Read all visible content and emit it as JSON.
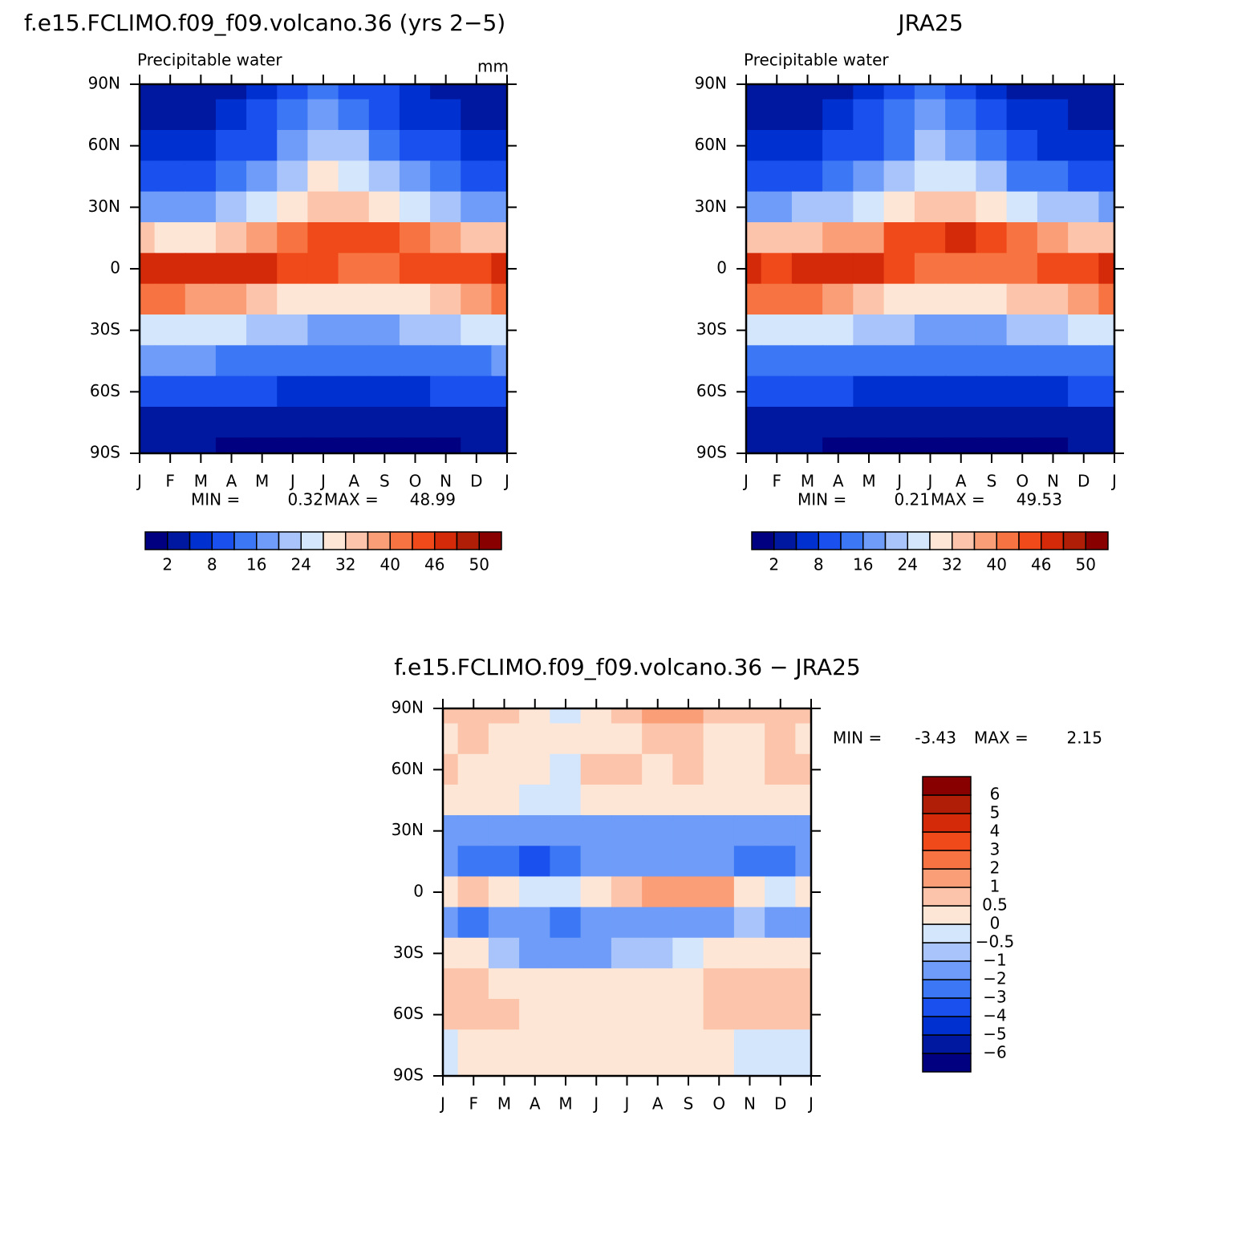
{
  "chart_data": [
    {
      "type": "contour",
      "title": "f.e15.FCLIMO.f09_f09.volcano.36 (yrs 2−5)",
      "subtitle": "Precipitable water",
      "units": "mm",
      "categories": [
        "J",
        "F",
        "M",
        "A",
        "M",
        "J",
        "J",
        "A",
        "S",
        "O",
        "N",
        "D",
        "J"
      ],
      "lats": [
        90,
        75,
        60,
        45,
        30,
        15,
        0,
        -15,
        -30,
        -45,
        -60,
        -75,
        -90
      ],
      "ylim": [
        -90,
        90
      ],
      "yticks": [
        {
          "value": 90,
          "label": "90N"
        },
        {
          "value": 60,
          "label": "60N"
        },
        {
          "value": 30,
          "label": "30N"
        },
        0,
        {
          "value": -30,
          "label": "30S"
        },
        {
          "value": -60,
          "label": "60S"
        },
        {
          "value": -90,
          "label": "90S"
        }
      ],
      "values": [
        [
          3,
          3,
          3,
          4,
          6,
          9,
          12,
          11,
          8,
          5,
          4,
          3,
          3
        ],
        [
          4,
          4,
          4,
          5,
          8,
          12,
          16,
          15,
          11,
          7,
          5,
          4,
          4
        ],
        [
          6,
          6,
          7,
          8,
          11,
          16,
          21,
          20,
          15,
          10,
          8,
          6,
          6
        ],
        [
          10,
          10,
          11,
          13,
          17,
          22,
          28,
          27,
          22,
          16,
          12,
          10,
          10
        ],
        [
          18,
          18,
          19,
          21,
          25,
          30,
          34,
          34,
          30,
          25,
          21,
          19,
          18
        ],
        [
          32,
          31,
          31,
          33,
          37,
          41,
          44,
          45,
          43,
          40,
          36,
          33,
          32
        ],
        [
          46,
          46,
          47,
          47,
          46,
          44,
          43,
          42,
          42,
          43,
          44,
          45,
          46
        ],
        [
          40,
          40,
          39,
          37,
          33,
          30,
          28,
          28,
          29,
          31,
          34,
          37,
          40
        ],
        [
          27,
          27,
          26,
          24,
          22,
          20,
          18,
          18,
          19,
          21,
          23,
          25,
          27
        ],
        [
          16,
          16,
          16,
          15,
          14,
          13,
          12,
          12,
          12,
          13,
          14,
          15,
          16
        ],
        [
          9,
          9,
          9,
          8,
          8,
          7,
          7,
          7,
          7,
          7,
          8,
          8,
          9
        ],
        [
          4,
          4,
          4,
          3,
          3,
          3,
          3,
          3,
          3,
          3,
          3,
          3,
          4
        ],
        [
          2,
          2,
          2,
          1,
          1,
          1,
          1,
          1,
          1,
          1,
          1,
          2,
          2
        ]
      ],
      "levels": [
        2,
        5,
        8,
        12,
        16,
        20,
        24,
        28,
        32,
        36,
        40,
        43,
        46,
        48,
        50
      ],
      "colorbar_ticks": [
        2,
        8,
        16,
        24,
        32,
        40,
        46,
        50
      ],
      "colors": [
        "#000080",
        "#0018a0",
        "#0030d0",
        "#1a50ee",
        "#3c78f5",
        "#6e9cf8",
        "#a8c4fa",
        "#d4e6fc",
        "#fde6d6",
        "#fcc4aa",
        "#fa9e78",
        "#f77442",
        "#f04a1a",
        "#d42a0a",
        "#b01e08",
        "#880000"
      ],
      "min_label": "MIN =",
      "min": 0.32,
      "max_label": "MAX =",
      "max": 48.99
    },
    {
      "type": "contour",
      "title": "JRA25",
      "subtitle": "Precipitable water",
      "categories": [
        "J",
        "F",
        "M",
        "A",
        "M",
        "J",
        "J",
        "A",
        "S",
        "O",
        "N",
        "D",
        "J"
      ],
      "lats": [
        90,
        75,
        60,
        45,
        30,
        15,
        0,
        -15,
        -30,
        -45,
        -60,
        -75,
        -90
      ],
      "ylim": [
        -90,
        90
      ],
      "yticks": [
        {
          "value": 90,
          "label": "90N"
        },
        {
          "value": 60,
          "label": "60N"
        },
        {
          "value": 30,
          "label": "30N"
        },
        0,
        {
          "value": -30,
          "label": "30S"
        },
        {
          "value": -60,
          "label": "60S"
        },
        {
          "value": -90,
          "label": "90S"
        }
      ],
      "values": [
        [
          2,
          2,
          3,
          4,
          6,
          9,
          12,
          10,
          7,
          4,
          3,
          2,
          2
        ],
        [
          4,
          4,
          4,
          5,
          8,
          12,
          16,
          14,
          10,
          6,
          5,
          4,
          4
        ],
        [
          6,
          6,
          7,
          8,
          11,
          15,
          20,
          19,
          14,
          9,
          7,
          6,
          6
        ],
        [
          10,
          10,
          11,
          13,
          17,
          21,
          27,
          26,
          21,
          15,
          12,
          10,
          10
        ],
        [
          19,
          19,
          20,
          22,
          26,
          31,
          35,
          35,
          31,
          26,
          22,
          20,
          19
        ],
        [
          34,
          33,
          33,
          36,
          39,
          43,
          45,
          46,
          44,
          41,
          38,
          35,
          34
        ],
        [
          46,
          45,
          46,
          47,
          46,
          44,
          42,
          41,
          41,
          42,
          43,
          45,
          46
        ],
        [
          41,
          42,
          40,
          38,
          35,
          31,
          29,
          29,
          30,
          32,
          34,
          38,
          41
        ],
        [
          27,
          27,
          26,
          25,
          23,
          21,
          19,
          19,
          19,
          21,
          23,
          25,
          27
        ],
        [
          15,
          15,
          15,
          15,
          14,
          13,
          12,
          12,
          12,
          12,
          13,
          14,
          15
        ],
        [
          8,
          8,
          8,
          8,
          7,
          7,
          7,
          7,
          6,
          6,
          7,
          8,
          8
        ],
        [
          4,
          4,
          3,
          3,
          3,
          2,
          2,
          2,
          2,
          2,
          3,
          3,
          4
        ],
        [
          2,
          2,
          2,
          1,
          1,
          1,
          1,
          1,
          1,
          1,
          1,
          2,
          2
        ]
      ],
      "levels": [
        2,
        5,
        8,
        12,
        16,
        20,
        24,
        28,
        32,
        36,
        40,
        43,
        46,
        48,
        50
      ],
      "colorbar_ticks": [
        2,
        8,
        16,
        24,
        32,
        40,
        46,
        50
      ],
      "colors": [
        "#000080",
        "#0018a0",
        "#0030d0",
        "#1a50ee",
        "#3c78f5",
        "#6e9cf8",
        "#a8c4fa",
        "#d4e6fc",
        "#fde6d6",
        "#fcc4aa",
        "#fa9e78",
        "#f77442",
        "#f04a1a",
        "#d42a0a",
        "#b01e08",
        "#880000"
      ],
      "min_label": "MIN =",
      "min": 0.21,
      "max_label": "MAX =",
      "max": 49.53
    },
    {
      "type": "contour",
      "title": "f.e15.FCLIMO.f09_f09.volcano.36 − JRA25",
      "categories": [
        "J",
        "F",
        "M",
        "A",
        "M",
        "J",
        "J",
        "A",
        "S",
        "O",
        "N",
        "D",
        "J"
      ],
      "lats": [
        90,
        75,
        60,
        45,
        30,
        15,
        0,
        -15,
        -30,
        -45,
        -60,
        -75,
        -90
      ],
      "ylim": [
        -90,
        90
      ],
      "yticks": [
        {
          "value": 90,
          "label": "90N"
        },
        {
          "value": 60,
          "label": "60N"
        },
        {
          "value": 30,
          "label": "30N"
        },
        0,
        {
          "value": -30,
          "label": "30S"
        },
        {
          "value": -60,
          "label": "60S"
        },
        {
          "value": -90,
          "label": "90S"
        }
      ],
      "values": [
        [
          0.5,
          0.5,
          0.5,
          0.3,
          -0.2,
          0.3,
          0.5,
          1.2,
          1.2,
          0.6,
          0.5,
          0.5,
          0.5
        ],
        [
          0.3,
          0.6,
          0.4,
          0.3,
          0.2,
          0.3,
          0.4,
          0.8,
          0.6,
          0.3,
          0.3,
          0.6,
          0.3
        ],
        [
          0.5,
          0.3,
          0.4,
          0.2,
          -0.2,
          0.6,
          0.6,
          0.4,
          0.6,
          0.3,
          0.3,
          0.6,
          0.5
        ],
        [
          0.3,
          0.2,
          0.1,
          -0.2,
          -0.3,
          0.2,
          0.1,
          0.2,
          0.3,
          0.2,
          0.1,
          0.2,
          0.3
        ],
        [
          -1.2,
          -1.3,
          -1.5,
          -1.6,
          -1.4,
          -1.3,
          -1.3,
          -1.4,
          -1.4,
          -1.2,
          -1.3,
          -1.4,
          -1.2
        ],
        [
          -1.8,
          -2.2,
          -2.6,
          -3.2,
          -2.4,
          -1.6,
          -1.3,
          -1.5,
          -1.6,
          -1.6,
          -2.2,
          -2.8,
          -1.8
        ],
        [
          0.3,
          0.8,
          0.4,
          -0.2,
          -0.3,
          0.2,
          0.6,
          1.2,
          1.3,
          1.0,
          0.4,
          -0.2,
          0.3
        ],
        [
          -1.3,
          -2.2,
          -1.5,
          -1.6,
          -2.4,
          -1.8,
          -1.4,
          -1.5,
          -1.4,
          -1.2,
          -0.6,
          -1.3,
          -1.3
        ],
        [
          0.3,
          0.2,
          -0.6,
          -1.2,
          -1.1,
          -1.3,
          -0.8,
          -0.6,
          -0.4,
          0.1,
          0.2,
          0.2,
          0.3
        ],
        [
          0.6,
          0.6,
          0.4,
          0.3,
          0.2,
          0.2,
          0.3,
          0.3,
          0.4,
          0.6,
          0.7,
          0.8,
          0.6
        ],
        [
          0.6,
          0.8,
          0.6,
          0.4,
          0.3,
          0.3,
          0.3,
          0.3,
          0.4,
          0.5,
          0.6,
          0.5,
          0.6
        ],
        [
          -0.2,
          0.3,
          0.3,
          0.3,
          0.3,
          0.3,
          0.3,
          0.3,
          0.2,
          0.2,
          -0.2,
          -0.3,
          -0.2
        ],
        [
          -0.2,
          0.2,
          0.2,
          0.2,
          0.2,
          0.2,
          0.2,
          0.2,
          0.2,
          0.2,
          -0.1,
          -0.2,
          -0.2
        ]
      ],
      "levels": [
        -6,
        -5,
        -4,
        -3,
        -2,
        -1,
        -0.5,
        0,
        0.5,
        1,
        2,
        3,
        4,
        5,
        6
      ],
      "colorbar_ticks": [
        {
          "value": -6,
          "label": "−6"
        },
        {
          "value": -5,
          "label": "−5"
        },
        {
          "value": -4,
          "label": "−4"
        },
        {
          "value": -3,
          "label": "−3"
        },
        {
          "value": -2,
          "label": "−2"
        },
        {
          "value": -1,
          "label": "−1"
        },
        {
          "value": -0.5,
          "label": "−0.5"
        },
        0,
        0.5,
        1,
        2,
        3,
        4,
        5,
        6
      ],
      "colors": [
        "#000080",
        "#0018a0",
        "#0030d0",
        "#1a50ee",
        "#3c78f5",
        "#6e9cf8",
        "#a8c4fa",
        "#d4e6fc",
        "#fde6d6",
        "#fcc4aa",
        "#fa9e78",
        "#f77442",
        "#f04a1a",
        "#d42a0a",
        "#b01e08",
        "#880000"
      ],
      "min_label": "MIN =",
      "min": -3.43,
      "max_label": "MAX =",
      "max": 2.15
    }
  ]
}
